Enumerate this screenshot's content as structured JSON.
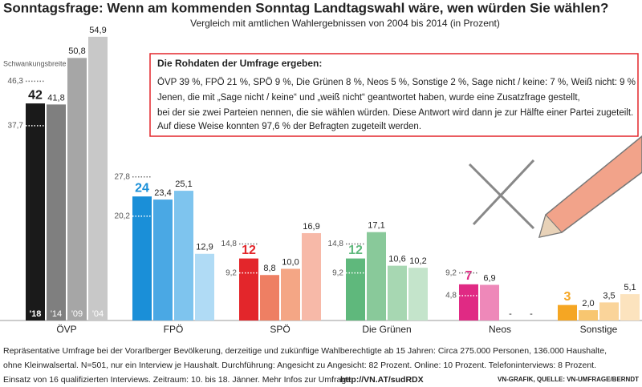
{
  "chart_data": {
    "type": "bar",
    "title": "Sonntagsfrage: Wenn am kommenden Sonntag Landtagswahl wäre, wen würden Sie wählen?",
    "subtitle": "Vergleich mit amtlichen Wahlergebnissen von 2004 bis 2014 (in Prozent)",
    "categories": [
      "ÖVP",
      "FPÖ",
      "SPÖ",
      "Die Grünen",
      "Neos",
      "Sonstige"
    ],
    "series": [
      {
        "name": "'18",
        "colors": [
          "#1a1a1a",
          "#1a8fd8",
          "#e3262b",
          "#5fb87c",
          "#e02a84",
          "#f5a623"
        ],
        "values": [
          42,
          24,
          12,
          12,
          7,
          3
        ],
        "value_labels": [
          "42",
          "24",
          "12",
          "12",
          "7",
          "3"
        ]
      },
      {
        "name": "'14",
        "colors": [
          "#7f7f7f",
          "#4aa8e4",
          "#ee7f63",
          "#89c99a",
          "#ee88b9",
          "#f8c670"
        ],
        "values": [
          41.8,
          23.4,
          8.8,
          17.1,
          6.9,
          2.0
        ],
        "value_labels": [
          "41,8",
          "23,4",
          "8,8",
          "17,1",
          "6,9",
          "2,0"
        ]
      },
      {
        "name": "'09",
        "colors": [
          "#a6a6a6",
          "#7ec4ee",
          "#f4a685",
          "#a7d7b2",
          "#f4b3d2",
          "#fad49a"
        ],
        "values": [
          50.8,
          25.1,
          10.0,
          10.6,
          null,
          3.5
        ],
        "value_labels": [
          "50,8",
          "25,1",
          "10,0",
          "10,6",
          "-",
          "3,5"
        ]
      },
      {
        "name": "'04",
        "colors": [
          "#c8c8c8",
          "#b0dbf5",
          "#f7b9a8",
          "#c4e4cb",
          "#f8cfe2",
          "#fce3be"
        ],
        "values": [
          54.9,
          12.9,
          16.9,
          10.2,
          null,
          5.1
        ],
        "value_labels": [
          "54,9",
          "12,9",
          "16,9",
          "10,2",
          "-",
          "5,1"
        ]
      }
    ],
    "range_title": "Schwankungsbreite",
    "ranges": {
      "values": [
        [
          37.7,
          46.3
        ],
        [
          20.2,
          27.8
        ],
        [
          9.2,
          14.8
        ],
        [
          9.2,
          14.8
        ],
        [
          4.8,
          9.2
        ],
        null
      ],
      "value_labels": [
        [
          "37,7",
          "46,3"
        ],
        [
          "20,2",
          "27,8"
        ],
        [
          "9,2",
          "14,8"
        ],
        [
          "9,2",
          "14,8"
        ],
        [
          "4,8",
          "9,2"
        ],
        null
      ]
    }
  },
  "info_box": {
    "title": "Die Rohdaten der Umfrage ergeben:",
    "lines": [
      "ÖVP 39 %, FPÖ 21 %, SPÖ 9 %, Die Grünen 8 %, Neos 5 %, Sonstige 2 %, Sage nicht / keine: 7 %, Weiß nicht: 9 %",
      "Jenen, die mit „Sage nicht / keine“ und „weiß nicht“ geantwortet haben, wurde eine Zusatzfrage gestellt,",
      "bei der sie zwei Parteien nennen, die sie wählen würden. Diese Antwort wird dann je zur Hälfte einer Partei zugeteilt.",
      "Auf diese Weise konnten 97,6 % der Befragten zugeteilt werden."
    ]
  },
  "footnote": {
    "lines": [
      "Repräsentative Umfrage bei der Vorarlberger Bevölkerung, derzeitige und zukünftige Wahlberechtigte ab 15 Jahren: Circa 275.000 Personen, 136.000 Haushalte,",
      "ohne Kleinwalsertal. N=501, nur ein Interview je Haushalt. Durchführung: Angesicht zu Angesicht: 82 Prozent. Online: 10 Prozent. Telefoninterviews: 8 Prozent.",
      "Einsatz von 16 qualifizierten Interviews. Zeitraum: 10. bis 18. Jänner. Mehr Infos zur Umfrage:"
    ],
    "link": "http://VN.AT/sudRDX",
    "source": "VN-GRAFIK, QUELLE: VN-UMFRAGE/BERNDT"
  }
}
